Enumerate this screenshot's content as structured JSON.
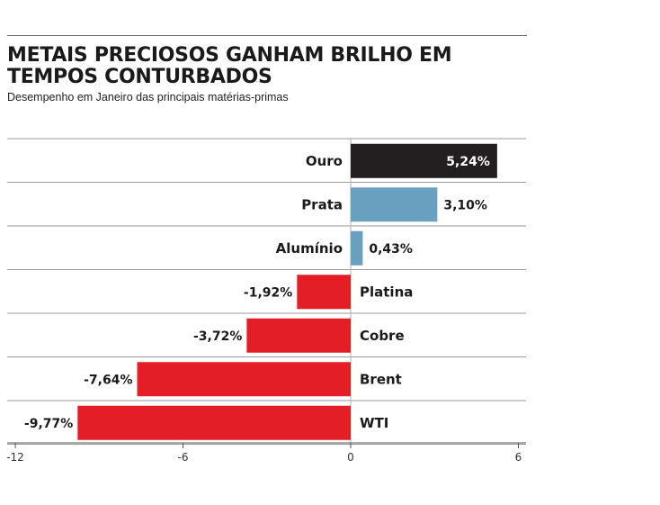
{
  "title": "METAIS PRECIOSOS GANHAM BRILHO EM TEMPOS CONTURBADOS",
  "subtitle": "Desempenho em Janeiro das principais matérias-primas",
  "colors": {
    "gold": "#231f20",
    "silver": "#6aa0bf",
    "negative": "#e41e26",
    "rule": "#9a9a9a",
    "axis": "#555555"
  },
  "chart_data": {
    "type": "bar",
    "orientation": "horizontal",
    "title": "METAIS PRECIOSOS GANHAM BRILHO EM TEMPOS CONTURBADOS",
    "subtitle": "Desempenho em Janeiro das principais matérias-primas",
    "categories": [
      "Ouro",
      "Prata",
      "Alumínio",
      "Platina",
      "Cobre",
      "Brent",
      "WTI"
    ],
    "values": [
      5.24,
      3.1,
      0.43,
      -1.92,
      -3.72,
      -7.64,
      -9.77
    ],
    "value_labels": [
      "5,24%",
      "3,10%",
      "0,43%",
      "-1,92%",
      "-3,72%",
      "-7,64%",
      "-9,77%"
    ],
    "xlim": [
      -12,
      6
    ],
    "xticks": [
      -12,
      -6,
      0,
      6
    ],
    "xtick_labels": [
      "-12",
      "-6",
      "0",
      "6"
    ],
    "xlabel": "",
    "ylabel": "",
    "grid": false,
    "legend": "none"
  }
}
